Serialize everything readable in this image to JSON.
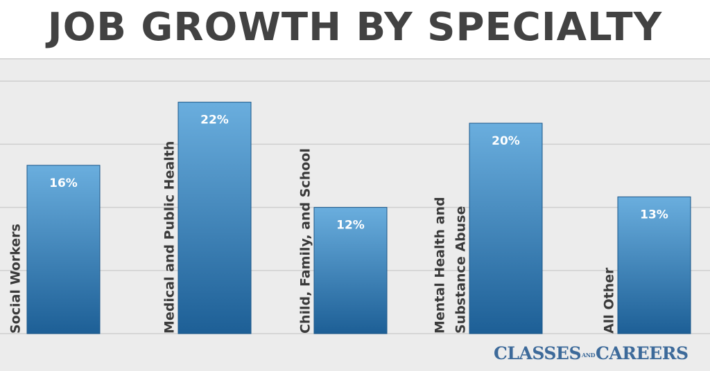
{
  "chart_data": {
    "type": "bar",
    "title": "JOB GROWTH BY SPECIALTY",
    "categories": [
      [
        "Social Workers"
      ],
      [
        "Medical and Public Health"
      ],
      [
        "Child, Family, and School"
      ],
      [
        "Mental Health and",
        "Substance Abuse"
      ],
      [
        "All Other"
      ]
    ],
    "values": [
      16,
      22,
      12,
      20,
      13
    ],
    "value_labels": [
      "16%",
      "22%",
      "12%",
      "20%",
      "13%"
    ],
    "ylim": [
      0,
      25
    ],
    "grid": true,
    "colors": {
      "bar_top": "#6aaede",
      "bar_bottom": "#1d5f96",
      "bar_border": "#1a5688",
      "grid": "#cfcfcf",
      "label": "#3a3a3a",
      "value_text": "#ffffff"
    }
  },
  "watermark": {
    "left": "CLASSES",
    "separator": "AND",
    "right": "CAREERS"
  }
}
